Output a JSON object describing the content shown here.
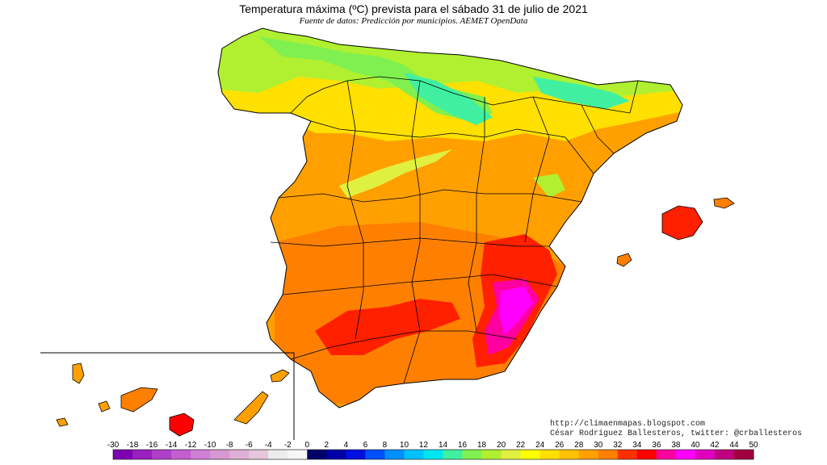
{
  "title": "Temperatura máxima (ºC) prevista para el sábado 31 de julio de 2021",
  "subtitle": "Fuente de datos: Predicción por municipios. AEMET OpenData",
  "credits": {
    "url": "http://climaenmapas.blogspot.com",
    "author": "César Rodríguez Ballesteros, twitter: @crballesteros"
  },
  "legend": {
    "ticks": [
      "-30",
      "-18",
      "-16",
      "-14",
      "-12",
      "-10",
      "-8",
      "-6",
      "-4",
      "-2",
      "0",
      "2",
      "4",
      "6",
      "8",
      "10",
      "12",
      "14",
      "16",
      "18",
      "20",
      "22",
      "24",
      "26",
      "28",
      "30",
      "32",
      "34",
      "36",
      "38",
      "40",
      "42",
      "44",
      "50"
    ],
    "colors": [
      "#7f00b2",
      "#9a1fbf",
      "#b040c8",
      "#c45fcf",
      "#d07fd4",
      "#d898d0",
      "#dfb0d6",
      "#e5c7dd",
      "#ececec",
      "#f6f6f6",
      "#000066",
      "#0000a8",
      "#0010e0",
      "#0050ff",
      "#0090ff",
      "#00c0ff",
      "#00e6f0",
      "#40f0a0",
      "#80f050",
      "#b0f030",
      "#e0f040",
      "#ffff00",
      "#ffe000",
      "#ffc000",
      "#ffa000",
      "#ff8000",
      "#ff3000",
      "#ff0000",
      "#ff00a0",
      "#ff00ff",
      "#e000c0",
      "#c00080",
      "#a00040"
    ]
  }
}
